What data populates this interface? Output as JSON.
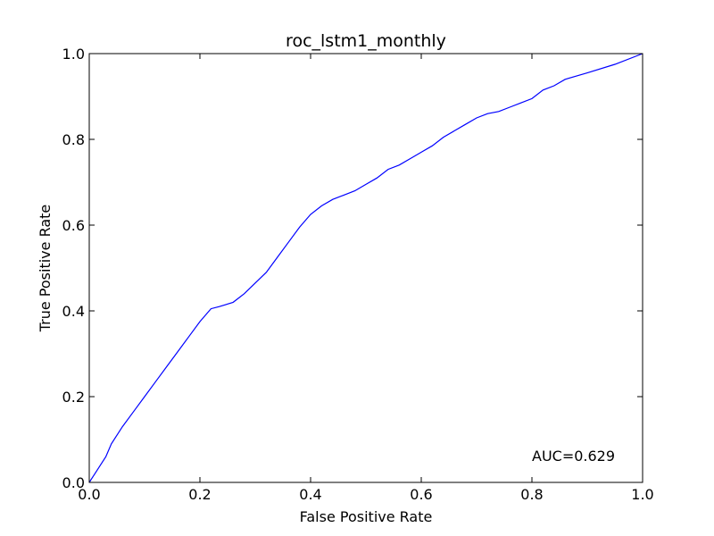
{
  "chart_data": {
    "type": "line",
    "title": "roc_lstm1_monthly",
    "xlabel": "False Positive Rate",
    "ylabel": "True Positive Rate",
    "xlim": [
      0.0,
      1.0
    ],
    "ylim": [
      0.0,
      1.0
    ],
    "x_ticks": [
      "0.0",
      "0.2",
      "0.4",
      "0.6",
      "0.8",
      "1.0"
    ],
    "y_ticks": [
      "0.0",
      "0.2",
      "0.4",
      "0.6",
      "0.8",
      "1.0"
    ],
    "grid": false,
    "legend": "none",
    "annotation": "AUC=0.629",
    "series": [
      {
        "color": "#0000ff",
        "x": [
          0.0,
          0.005,
          0.01,
          0.02,
          0.03,
          0.04,
          0.05,
          0.06,
          0.08,
          0.1,
          0.12,
          0.14,
          0.16,
          0.18,
          0.2,
          0.22,
          0.235,
          0.26,
          0.28,
          0.3,
          0.32,
          0.34,
          0.36,
          0.38,
          0.4,
          0.42,
          0.44,
          0.46,
          0.48,
          0.5,
          0.52,
          0.54,
          0.56,
          0.58,
          0.6,
          0.62,
          0.64,
          0.66,
          0.68,
          0.7,
          0.72,
          0.74,
          0.76,
          0.78,
          0.8,
          0.82,
          0.84,
          0.86,
          0.9,
          0.95,
          1.0
        ],
        "y": [
          0.0,
          0.01,
          0.02,
          0.04,
          0.06,
          0.09,
          0.11,
          0.13,
          0.165,
          0.2,
          0.235,
          0.27,
          0.305,
          0.34,
          0.375,
          0.405,
          0.41,
          0.42,
          0.44,
          0.465,
          0.49,
          0.525,
          0.56,
          0.595,
          0.625,
          0.645,
          0.66,
          0.67,
          0.68,
          0.695,
          0.71,
          0.73,
          0.74,
          0.755,
          0.77,
          0.785,
          0.805,
          0.82,
          0.835,
          0.85,
          0.86,
          0.865,
          0.875,
          0.885,
          0.895,
          0.915,
          0.925,
          0.94,
          0.955,
          0.975,
          1.0
        ]
      }
    ]
  }
}
